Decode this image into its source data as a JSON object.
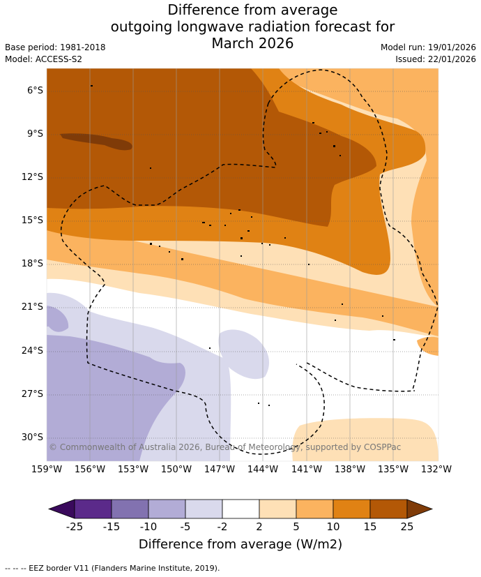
{
  "title": {
    "line1": "Difference from average",
    "line2": "outgoing longwave radiation forecast for",
    "line3": "March 2026"
  },
  "meta": {
    "base_period": "Base period: 1981-2018",
    "model": "Model: ACCESS-S2",
    "model_run": "Model run: 19/01/2026",
    "issued": "Issued: 22/01/2026"
  },
  "copyright": "© Commonwealth of Australia 2026, Bureau of Meteorology, supported by COSPPac",
  "axes": {
    "lat_labels": [
      "6°S",
      "9°S",
      "12°S",
      "15°S",
      "18°S",
      "21°S",
      "24°S",
      "27°S",
      "30°S"
    ],
    "lon_labels": [
      "159°W",
      "156°W",
      "153°W",
      "150°W",
      "147°W",
      "144°W",
      "141°W",
      "138°W",
      "135°W",
      "132°W"
    ]
  },
  "colorbar": {
    "ticks": [
      "-25",
      "-15",
      "-10",
      "-5",
      "-2",
      "2",
      "5",
      "10",
      "15",
      "25"
    ],
    "title": "Difference from average (W/m2)",
    "colors": {
      "below": "#3a0a5c",
      "n25_15": "#5b2a8a",
      "n15_10": "#8272b0",
      "n10_5": "#b2acd6",
      "n5_2": "#d9d9ec",
      "n2_2": "#ffffff",
      "p2_5": "#fee0b6",
      "p5_10": "#fbb35f",
      "p10_15": "#e08214",
      "p15_25": "#b35806",
      "above": "#7f3b08"
    }
  },
  "footer": "-- -- -- EEZ border V11 (Flanders Marine Institute, 2019)."
}
